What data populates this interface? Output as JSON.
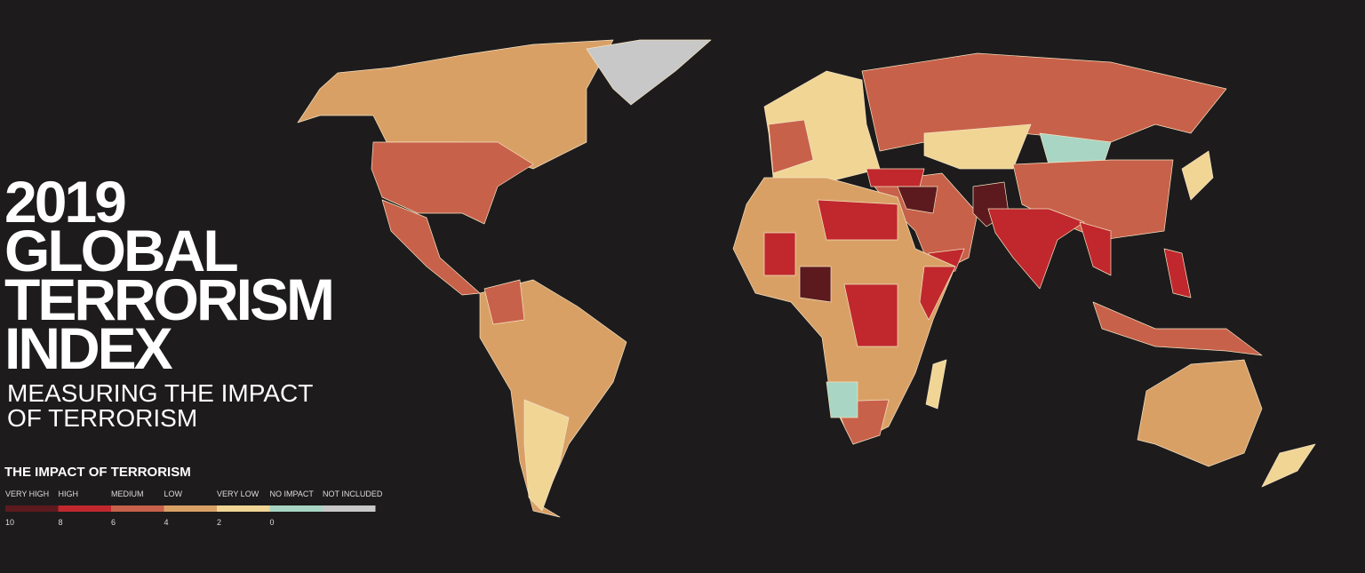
{
  "title": [
    "2019",
    "GLOBAL",
    "TERRORISM",
    "INDEX"
  ],
  "subtitle": [
    "MEASURING THE IMPACT",
    "OF TERRORISM"
  ],
  "legend": {
    "title": "THE IMPACT OF TERRORISM",
    "categories": [
      {
        "label": "VERY HIGH",
        "color": "#5c1a1e"
      },
      {
        "label": "HIGH",
        "color": "#c0282d"
      },
      {
        "label": "MEDIUM",
        "color": "#c8614a"
      },
      {
        "label": "LOW",
        "color": "#d9a066"
      },
      {
        "label": "VERY LOW",
        "color": "#f0d595"
      },
      {
        "label": "NO IMPACT",
        "color": "#a8d5c4"
      },
      {
        "label": "NOT INCLUDED",
        "color": "#c8c8c8"
      }
    ],
    "scale": [
      10,
      8,
      6,
      4,
      2,
      0
    ]
  }
}
